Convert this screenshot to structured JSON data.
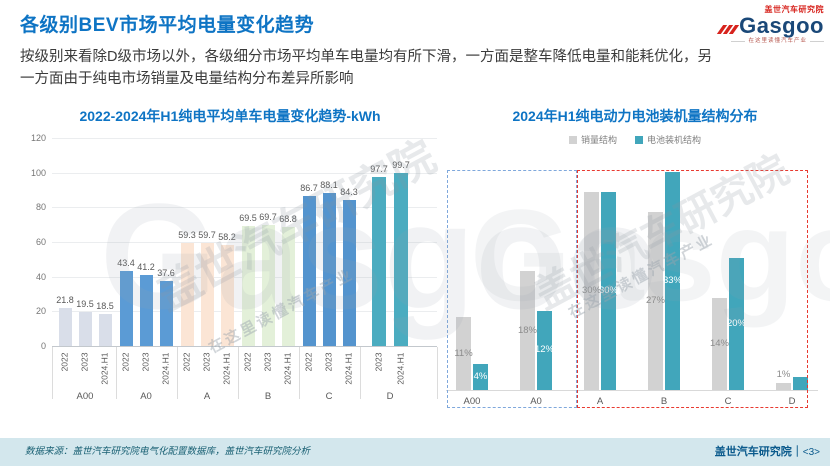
{
  "header": {
    "title": "各级别BEV市场平均电量变化趋势",
    "description_line1": "按级别来看除D级市场以外，各级细分市场平均单车电量均有所下滑，一方面是整车降低电量和能耗优化，另",
    "description_line2": "一方面由于纯电市场销量及电量结构分布差异所影响"
  },
  "logo": {
    "badge": "盖世汽车研究院",
    "brand": "Gasgoo",
    "tagline": "在这里读懂汽车产业"
  },
  "watermark": {
    "text_cn": "盖世汽车研究院",
    "text_en": "Gasgoo",
    "tagline": "在这里读懂汽车产业"
  },
  "colors": {
    "title_blue": "#0E74C4",
    "brand_red": "#D7231D",
    "footer_bg": "#D3E7ED",
    "highlight_blue_dashed": "#7FA8DC",
    "highlight_red_dashed": "#E83A30",
    "axis_gray": "#767676",
    "label_gray": "#595959"
  },
  "chart_data": [
    {
      "type": "bar",
      "title": "2022-2024年H1纯电平均单车电量变化趋势-kWh",
      "ylabel": "kWh",
      "ylim": [
        0,
        120
      ],
      "yticks": [
        0,
        20,
        40,
        60,
        80,
        100,
        120
      ],
      "grid": true,
      "legend": "none",
      "groups": [
        {
          "category": "A00",
          "color": "#D9DEE9",
          "bars": [
            {
              "label": "2022",
              "value": 21.8,
              "display": "21.8"
            },
            {
              "label": "2023",
              "value": 19.5,
              "display": "19.5"
            },
            {
              "label": "2024.H1",
              "value": 18.5,
              "display": "18.5"
            }
          ]
        },
        {
          "category": "A0",
          "color": "#5B9BD5",
          "bars": [
            {
              "label": "2022",
              "value": 43.4,
              "display": "43.4"
            },
            {
              "label": "2023",
              "value": 41.2,
              "display": "41.2"
            },
            {
              "label": "2024.H1",
              "value": 37.6,
              "display": "37.6"
            }
          ]
        },
        {
          "category": "A",
          "color": "#FBE5D5",
          "bars": [
            {
              "label": "2022",
              "value": 59.3,
              "display": "59.3"
            },
            {
              "label": "2023",
              "value": 59.7,
              "display": "59.7"
            },
            {
              "label": "2024.H1",
              "value": 58.2,
              "display": "58.2"
            }
          ]
        },
        {
          "category": "B",
          "color": "#E3F0D9",
          "bars": [
            {
              "label": "2022",
              "value": 69.5,
              "display": "69.5"
            },
            {
              "label": "2023",
              "value": 69.7,
              "display": "69.7"
            },
            {
              "label": "2024.H1",
              "value": 68.8,
              "display": "68.8"
            }
          ]
        },
        {
          "category": "C",
          "color": "#5494CE",
          "bars": [
            {
              "label": "2022",
              "value": 86.7,
              "display": "86.7"
            },
            {
              "label": "2023",
              "value": 88.1,
              "display": "88.1"
            },
            {
              "label": "2024.H1",
              "value": 84.3,
              "display": "84.3"
            }
          ]
        },
        {
          "category": "D",
          "color": "#4BACC0",
          "bars": [
            {
              "label": "2023",
              "value": 97.7,
              "display": "97.7"
            },
            {
              "label": "2024.H1",
              "value": 99.7,
              "display": "99.7"
            }
          ]
        }
      ]
    },
    {
      "type": "bar",
      "title": "2024年H1纯电动力电池装机量结构分布",
      "categories": [
        "A00",
        "A0",
        "A",
        "B",
        "C",
        "D"
      ],
      "ylim": [
        0,
        35
      ],
      "grid": false,
      "legend_position": "top",
      "series": [
        {
          "name": "销量结构",
          "color": "#D2D2D2",
          "label_color": "#8C8C8C",
          "values": [
            11,
            18,
            30,
            27,
            14,
            1
          ],
          "labels": [
            "11%",
            "18%",
            "30%",
            "27%",
            "14%",
            "1%"
          ]
        },
        {
          "name": "电池装机结构",
          "color": "#41A6BB",
          "label_color": "#FFFFFF",
          "values": [
            4,
            12,
            30,
            33,
            20,
            2
          ],
          "labels": [
            "4%",
            "12%",
            "30%",
            "33%",
            "20%",
            ""
          ]
        }
      ],
      "highlight_boxes": [
        {
          "categories": [
            "A00",
            "A0"
          ],
          "color": "#7FA8DC"
        },
        {
          "categories": [
            "A",
            "B",
            "C",
            "D"
          ],
          "color": "#E83A30"
        }
      ]
    }
  ],
  "footer": {
    "source": "数据来源：盖世汽车研究院电气化配置数据库，盖世汽车研究院分析",
    "org": "盖世汽车研究院",
    "divider": "｜",
    "page": "<3>"
  }
}
